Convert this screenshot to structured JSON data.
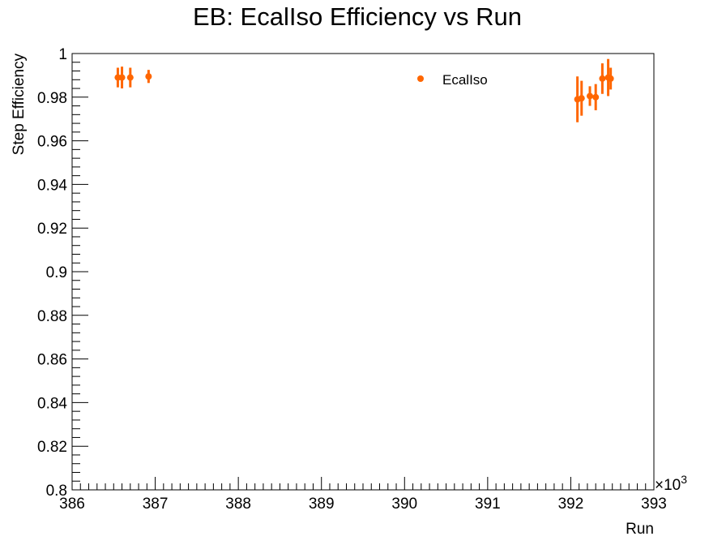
{
  "chart_data": {
    "type": "scatter",
    "title": "EB: EcalIso Efficiency vs Run",
    "xlabel": "Run",
    "ylabel": "Step Efficiency",
    "x_multiplier_label": "×10",
    "x_multiplier_exp": "3",
    "xlim": [
      386,
      393
    ],
    "ylim": [
      0.8,
      1.0
    ],
    "x_ticks": [
      386,
      387,
      388,
      389,
      390,
      391,
      392,
      393
    ],
    "x_tick_labels": [
      "386",
      "387",
      "388",
      "389",
      "390",
      "391",
      "392",
      "393"
    ],
    "y_ticks": [
      0.8,
      0.82,
      0.84,
      0.86,
      0.88,
      0.9,
      0.92,
      0.94,
      0.96,
      0.98,
      1.0
    ],
    "y_tick_labels": [
      "0.8",
      "0.82",
      "0.84",
      "0.86",
      "0.88",
      "0.9",
      "0.92",
      "0.94",
      "0.96",
      "0.98",
      "1"
    ],
    "grid": false,
    "legend": {
      "position": "top-right",
      "entries": [
        "EcalIso"
      ]
    },
    "series": [
      {
        "name": "EcalIso",
        "color": "#ff6600",
        "points": [
          {
            "x": 386.55,
            "y": 0.989,
            "err": 0.0045
          },
          {
            "x": 386.6,
            "y": 0.989,
            "err": 0.005
          },
          {
            "x": 386.7,
            "y": 0.989,
            "err": 0.0045
          },
          {
            "x": 386.92,
            "y": 0.9895,
            "err": 0.003
          },
          {
            "x": 392.08,
            "y": 0.979,
            "err": 0.0105
          },
          {
            "x": 392.13,
            "y": 0.9795,
            "err": 0.008
          },
          {
            "x": 392.23,
            "y": 0.9805,
            "err": 0.0045
          },
          {
            "x": 392.3,
            "y": 0.98,
            "err": 0.006
          },
          {
            "x": 392.38,
            "y": 0.9885,
            "err": 0.007
          },
          {
            "x": 392.45,
            "y": 0.989,
            "err": 0.0085
          },
          {
            "x": 392.48,
            "y": 0.9885,
            "err": 0.005
          }
        ]
      }
    ]
  }
}
